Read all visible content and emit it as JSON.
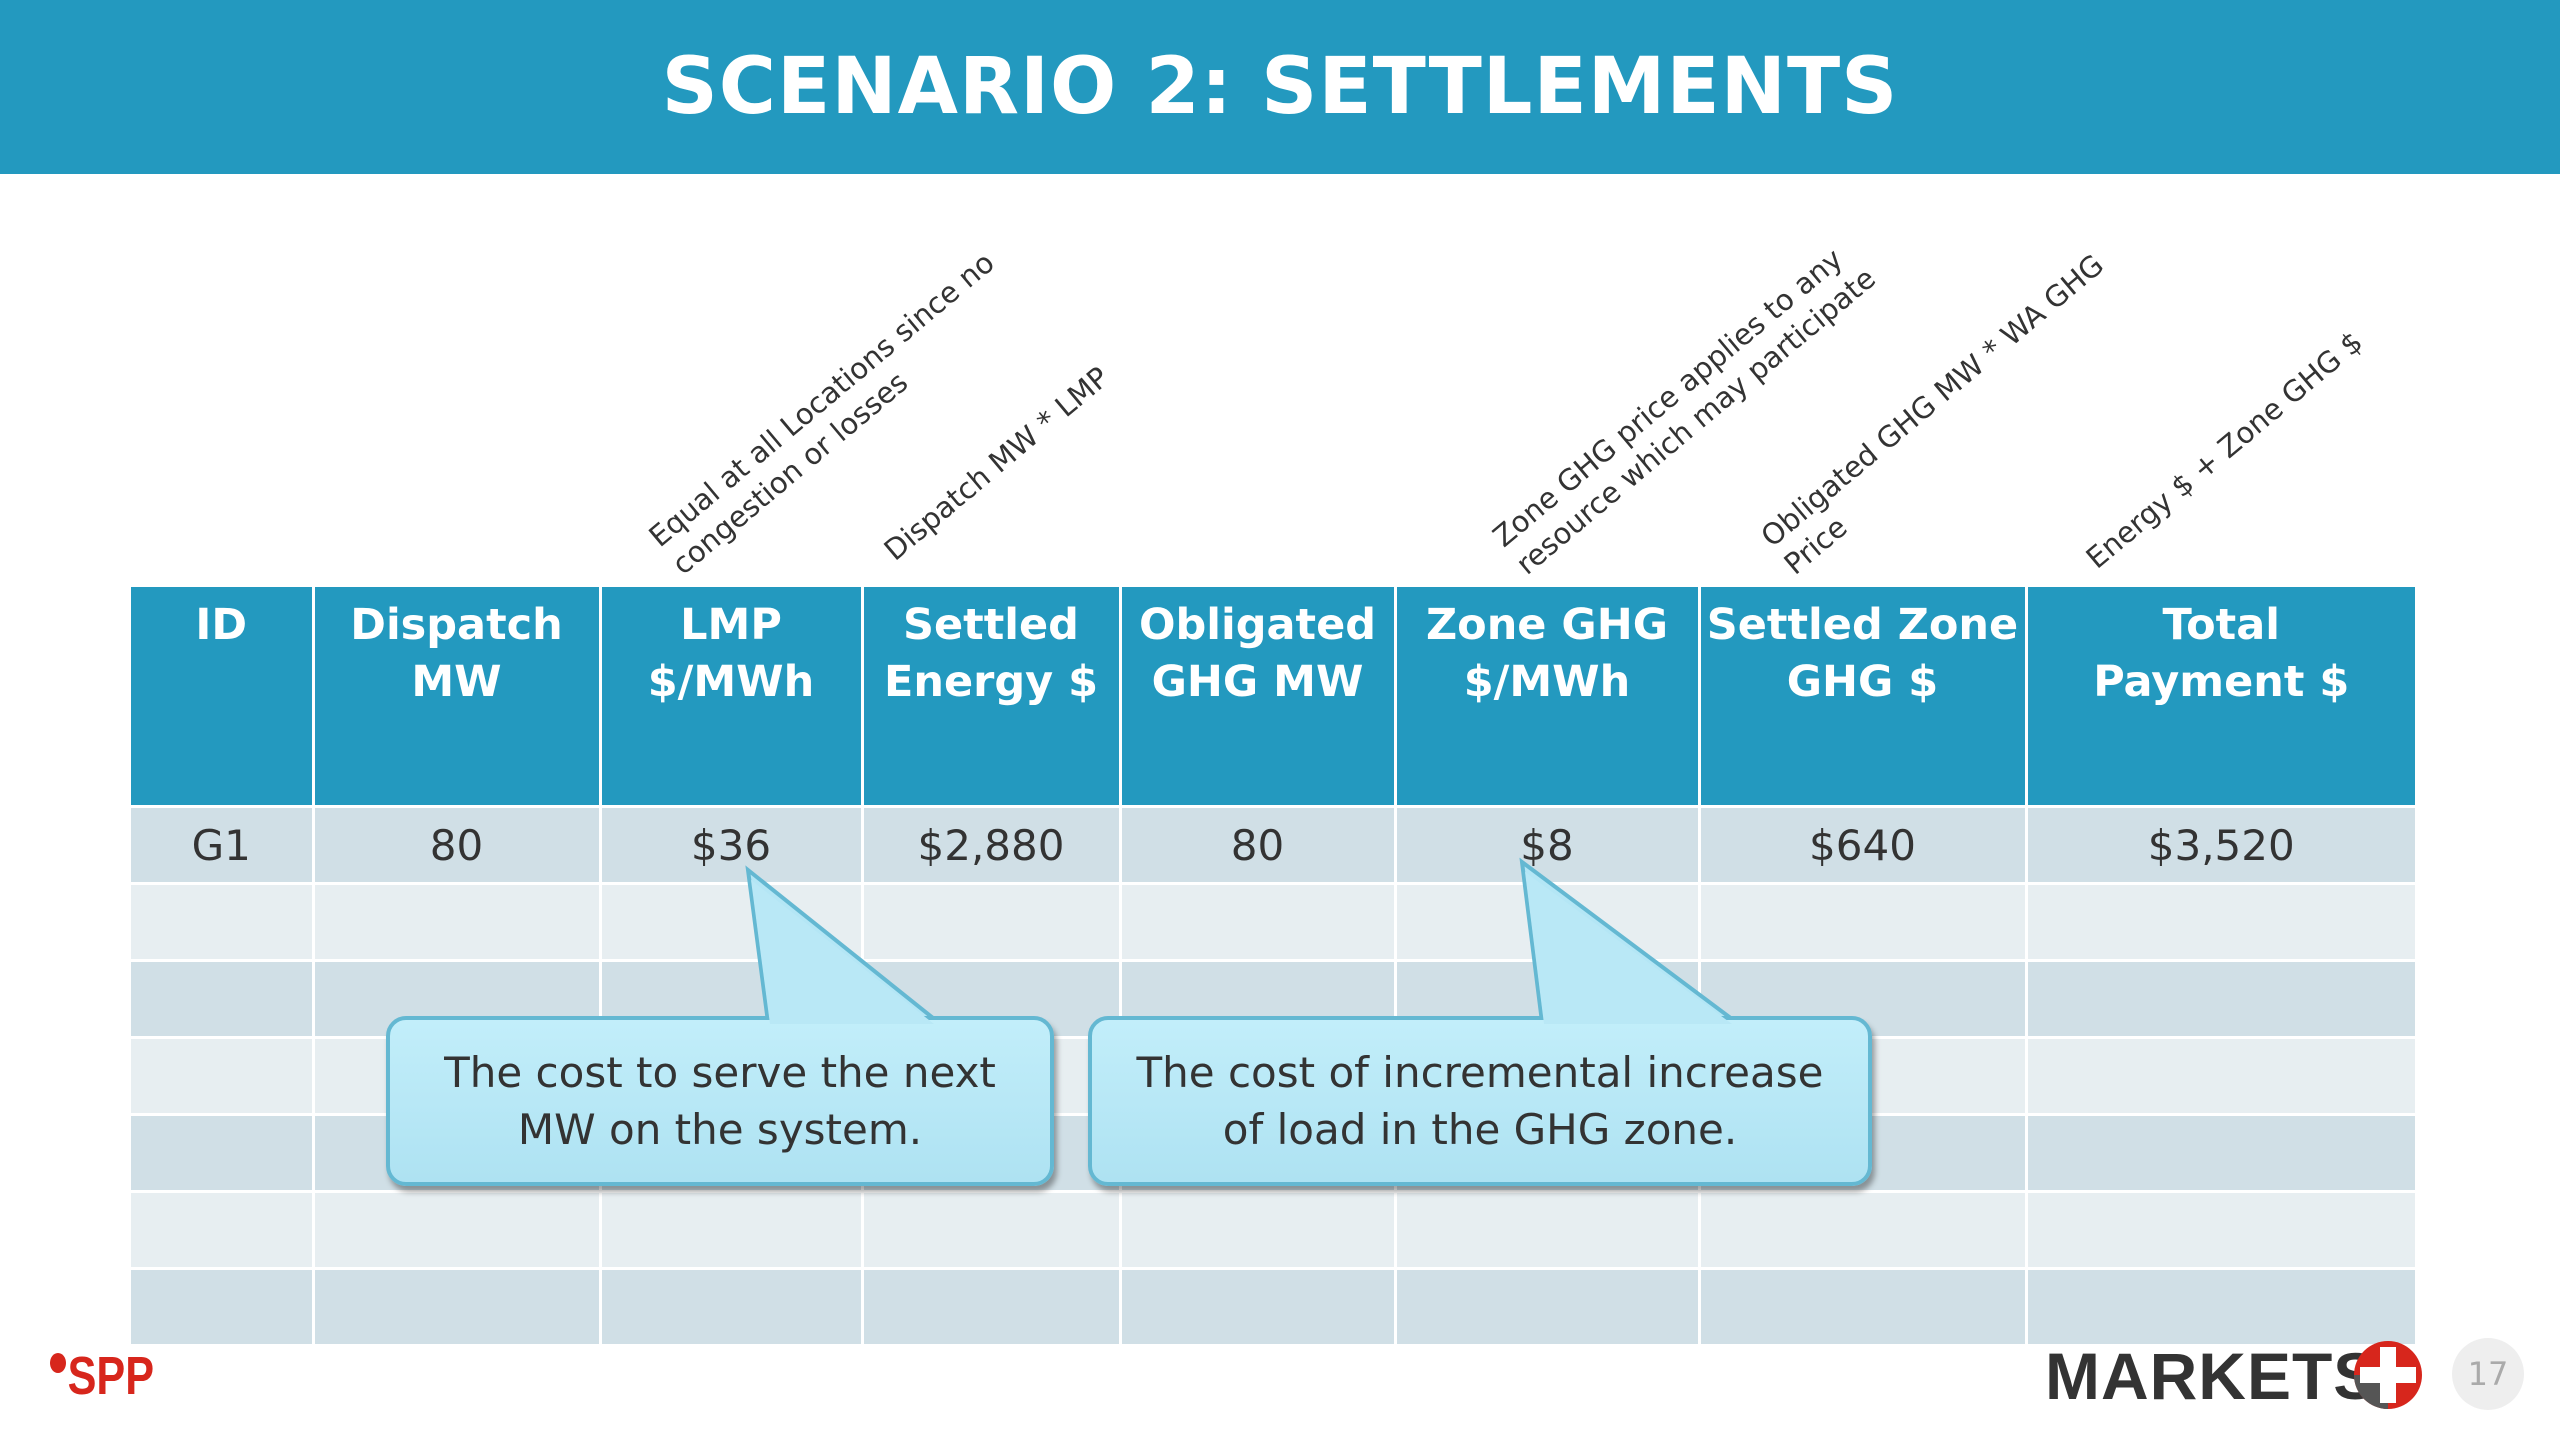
{
  "slide": {
    "title": "SCENARIO 2:  SETTLEMENTS",
    "page_number": "17"
  },
  "column_notes": {
    "lmp": [
      "Equal at all Locations since no",
      "congestion or losses"
    ],
    "settled_energy": [
      "Dispatch MW * LMP"
    ],
    "zone_ghg": [
      "Zone GHG price applies to any",
      "resource which may participate"
    ],
    "settled_zone_ghg": [
      "Obligated GHG MW * WA GHG",
      "Price"
    ],
    "total_payment": [
      "Energy $ + Zone GHG $"
    ]
  },
  "table": {
    "headers": [
      [
        "ID",
        ""
      ],
      [
        "Dispatch",
        "MW"
      ],
      [
        "LMP",
        "$/MWh"
      ],
      [
        "Settled",
        "Energy $"
      ],
      [
        "Obligated",
        "GHG MW"
      ],
      [
        "Zone GHG",
        "$/MWh"
      ],
      [
        "Settled Zone",
        "GHG $"
      ],
      [
        "Total",
        "Payment $"
      ]
    ],
    "rows": [
      [
        "G1",
        "80",
        "$36",
        "$2,880",
        "80",
        "$8",
        "$640",
        "$3,520"
      ],
      [
        "",
        "",
        "",
        "",
        "",
        "",
        "",
        ""
      ],
      [
        "",
        "",
        "",
        "",
        "",
        "",
        "",
        ""
      ],
      [
        "",
        "",
        "",
        "",
        "",
        "",
        "",
        ""
      ],
      [
        "",
        "",
        "",
        "",
        "",
        "",
        "",
        ""
      ],
      [
        "",
        "",
        "",
        "",
        "",
        "",
        "",
        ""
      ],
      [
        "",
        "",
        "",
        "",
        "",
        "",
        "",
        ""
      ]
    ]
  },
  "callouts": {
    "lmp": [
      "The cost to serve the next",
      "MW on the system."
    ],
    "ghg": [
      "The cost of incremental increase",
      "of load in the GHG zone."
    ]
  },
  "footer": {
    "spp_logo_text": "SPP",
    "markets_logo_text": "MARKETS"
  },
  "colors": {
    "header_blue": "#2399bf",
    "row_dark": "#d0dfe6",
    "row_light": "#e7eef1",
    "callout_fill": "#b4e6f5",
    "spp_red": "#d7261c",
    "markets_red": "#d7261c"
  }
}
